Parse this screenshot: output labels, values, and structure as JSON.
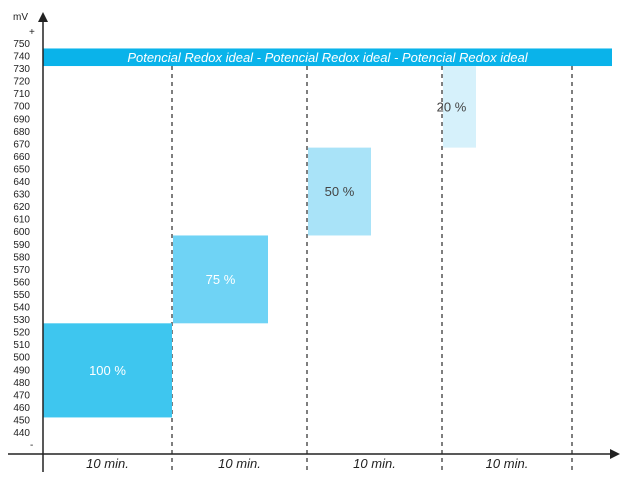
{
  "chart_data": {
    "type": "bar",
    "title": "",
    "y_unit": "mV",
    "y_plus": "+",
    "y_minus": "-",
    "ylim": [
      432,
      757
    ],
    "yticks": [
      440,
      450,
      460,
      470,
      480,
      490,
      500,
      510,
      520,
      530,
      540,
      550,
      560,
      570,
      580,
      590,
      600,
      610,
      620,
      630,
      640,
      650,
      660,
      670,
      680,
      690,
      700,
      710,
      720,
      730,
      740,
      750
    ],
    "categories": [
      "10 min.",
      "10 min.",
      "10 min.",
      "10 min."
    ],
    "bars": [
      {
        "label": "100 %",
        "low": 452,
        "high": 527,
        "color": "#3ec6ef",
        "text_color": "#ffffff"
      },
      {
        "label": "75 %",
        "low": 527,
        "high": 597,
        "color": "#6fd3f5",
        "text_color": "#ffffff"
      },
      {
        "label": "50 %",
        "low": 597,
        "high": 667,
        "color": "#a9e3f8",
        "text_color": "#444444"
      },
      {
        "label": "20 %",
        "low": 667,
        "high": 732,
        "color": "#d6f1fb",
        "text_color": "#444444"
      }
    ],
    "reference_band": {
      "label": "Potencial Redox ideal - Potencial Redox ideal - Potencial Redox ideal",
      "low": 732,
      "high": 746,
      "color": "#0ab3ea"
    },
    "grid": false
  }
}
